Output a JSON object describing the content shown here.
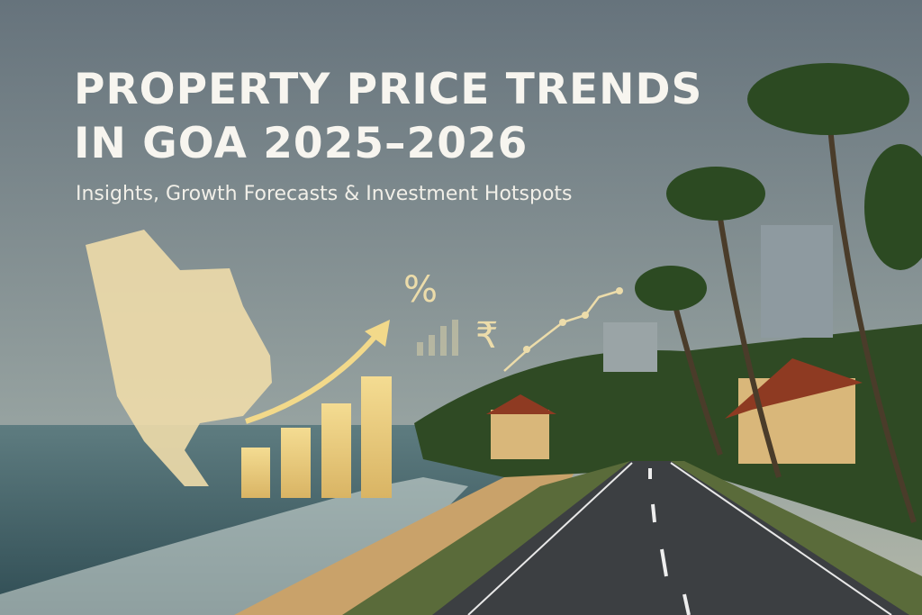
{
  "header": {
    "title_lines": [
      "PROPERTY PRICE TRENDS",
      "IN GOA 2025–2026"
    ],
    "subtitle": "Insights, Growth Forecasts & Investment Hotspots"
  },
  "icons": {
    "percent": "%",
    "rupee": "₹"
  }
}
